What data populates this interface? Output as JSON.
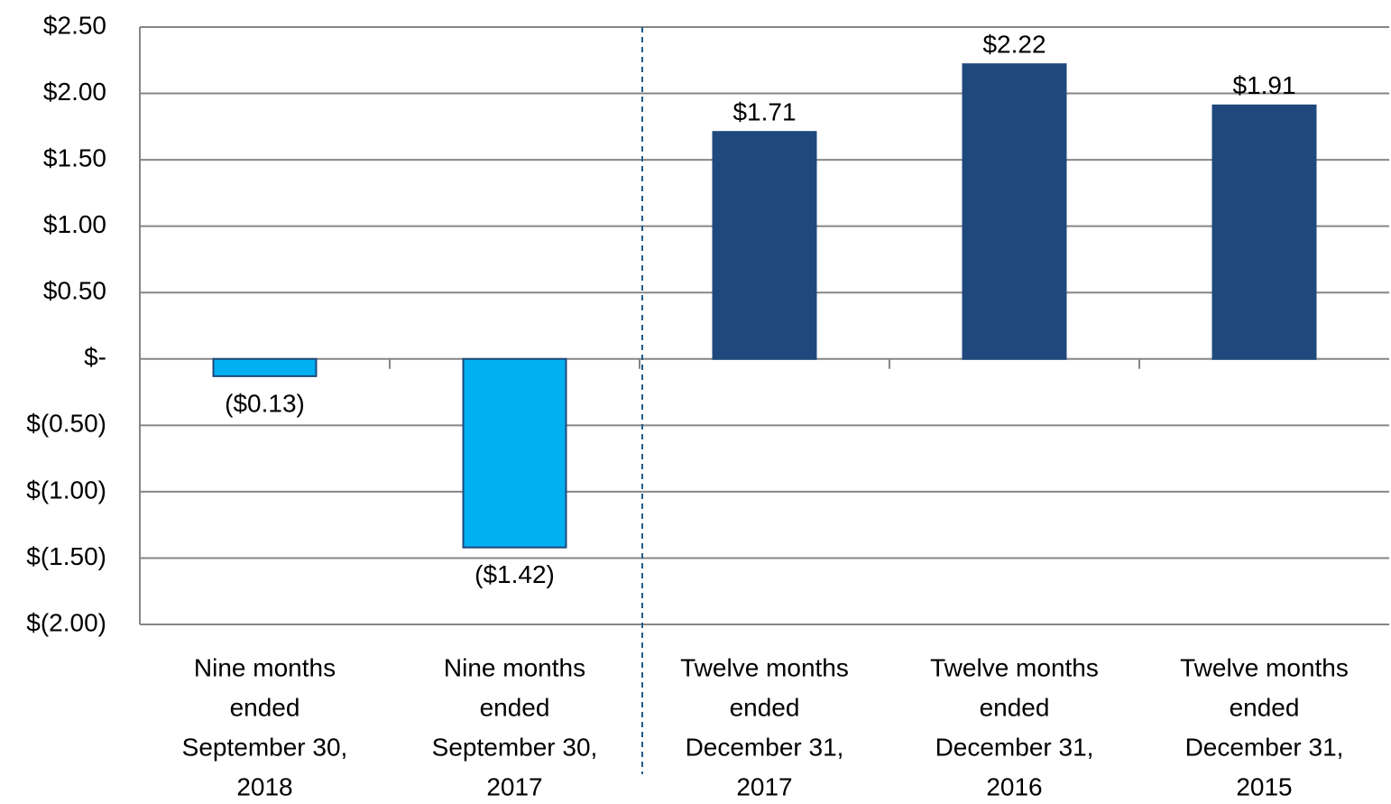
{
  "chart_data": {
    "type": "bar",
    "categories": [
      [
        "Nine months",
        "ended",
        "September 30,",
        "2018"
      ],
      [
        "Nine months",
        "ended",
        "September 30,",
        "2017"
      ],
      [
        "Twelve months",
        "ended",
        "December 31,",
        "2017"
      ],
      [
        "Twelve months",
        "ended",
        "December 31,",
        "2016"
      ],
      [
        "Twelve months",
        "ended",
        "December 31,",
        "2015"
      ]
    ],
    "values": [
      -0.13,
      -1.42,
      1.71,
      2.22,
      1.91
    ],
    "value_labels": [
      "($0.13)",
      "($1.42)",
      "$1.71",
      "$2.22",
      "$1.91"
    ],
    "colors": [
      "#00b0f0",
      "#00b0f0",
      "#1f497d",
      "#1f497d",
      "#1f497d"
    ],
    "ylim": [
      -2.0,
      2.5
    ],
    "yticks": [
      {
        "value": 2.5,
        "label": "$2.50"
      },
      {
        "value": 2.0,
        "label": "$2.00"
      },
      {
        "value": 1.5,
        "label": "$1.50"
      },
      {
        "value": 1.0,
        "label": "$1.00"
      },
      {
        "value": 0.5,
        "label": "$0.50"
      },
      {
        "value": 0,
        "label": "$-"
      },
      {
        "value": -0.5,
        "label": "$(0.50)"
      },
      {
        "value": -1.0,
        "label": "$(1.00)"
      },
      {
        "value": -1.5,
        "label": "$(1.50)"
      },
      {
        "value": -2.0,
        "label": "$(2.00)"
      }
    ],
    "grid": true
  }
}
